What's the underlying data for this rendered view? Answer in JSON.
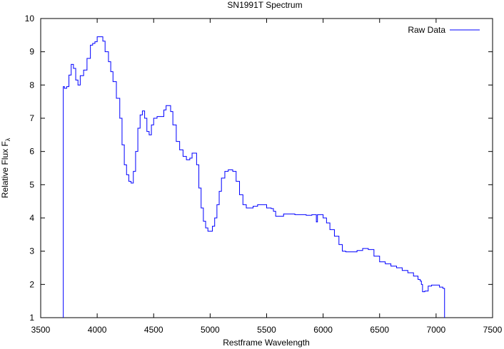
{
  "chart_data": {
    "type": "line",
    "title": "SN1991T Spectrum",
    "xlabel": "Restframe Wavelength",
    "ylabel": "Relative Flux F",
    "ylabel_subscript": "λ",
    "xlim": [
      3500,
      7500
    ],
    "ylim": [
      1,
      10
    ],
    "xticks": [
      3500,
      4000,
      4500,
      5000,
      5500,
      6000,
      6500,
      7000,
      7500
    ],
    "yticks": [
      1,
      2,
      3,
      4,
      5,
      6,
      7,
      8,
      9,
      10
    ],
    "legend_position": "top-right",
    "series": [
      {
        "name": "Raw Data",
        "color": "#0000ff",
        "step": true,
        "x": [
          3700,
          3700,
          3710,
          3730,
          3750,
          3770,
          3790,
          3810,
          3830,
          3850,
          3880,
          3910,
          3940,
          3960,
          3980,
          4000,
          4030,
          4050,
          4070,
          4100,
          4120,
          4140,
          4170,
          4200,
          4220,
          4240,
          4260,
          4280,
          4300,
          4320,
          4340,
          4360,
          4380,
          4400,
          4420,
          4440,
          4460,
          4480,
          4500,
          4530,
          4560,
          4590,
          4610,
          4630,
          4650,
          4670,
          4700,
          4730,
          4760,
          4790,
          4820,
          4840,
          4860,
          4880,
          4900,
          4920,
          4940,
          4960,
          4980,
          5000,
          5020,
          5040,
          5060,
          5080,
          5100,
          5130,
          5160,
          5200,
          5230,
          5260,
          5290,
          5320,
          5350,
          5380,
          5420,
          5460,
          5500,
          5540,
          5560,
          5580,
          5600,
          5650,
          5700,
          5750,
          5800,
          5850,
          5900,
          5930,
          5940,
          5950,
          5970,
          6000,
          6030,
          6060,
          6100,
          6140,
          6170,
          6200,
          6250,
          6300,
          6350,
          6400,
          6450,
          6500,
          6550,
          6600,
          6650,
          6700,
          6750,
          6800,
          6840,
          6860,
          6870,
          6880,
          6900,
          6930,
          6960,
          6990,
          7030,
          7060,
          7075,
          7075
        ],
        "y": [
          1.0,
          7.95,
          7.9,
          7.95,
          8.3,
          8.62,
          8.5,
          8.15,
          8.0,
          8.28,
          8.45,
          8.8,
          9.2,
          9.25,
          9.3,
          9.45,
          9.45,
          9.32,
          9.0,
          8.7,
          8.4,
          8.1,
          7.6,
          7.0,
          6.2,
          5.6,
          5.3,
          5.1,
          5.05,
          5.4,
          6.0,
          6.7,
          7.1,
          7.22,
          7.0,
          6.6,
          6.5,
          6.8,
          7.0,
          7.05,
          7.05,
          7.25,
          7.38,
          7.38,
          7.2,
          6.8,
          6.3,
          6.05,
          5.85,
          5.75,
          5.8,
          5.95,
          5.95,
          5.6,
          4.9,
          4.3,
          3.9,
          3.7,
          3.6,
          3.6,
          3.75,
          4.0,
          4.4,
          4.8,
          5.2,
          5.4,
          5.45,
          5.4,
          5.1,
          4.7,
          4.4,
          4.3,
          4.3,
          4.35,
          4.4,
          4.4,
          4.3,
          4.28,
          4.2,
          4.05,
          4.05,
          4.12,
          4.12,
          4.1,
          4.1,
          4.08,
          4.1,
          4.1,
          3.88,
          4.1,
          4.1,
          4.0,
          3.85,
          3.65,
          3.45,
          3.2,
          3.0,
          2.98,
          2.98,
          3.02,
          3.08,
          3.05,
          2.85,
          2.68,
          2.62,
          2.55,
          2.5,
          2.42,
          2.35,
          2.25,
          2.15,
          2.1,
          2.0,
          1.78,
          1.8,
          1.95,
          1.98,
          1.98,
          1.92,
          1.88,
          1.88,
          1.0
        ]
      }
    ]
  }
}
